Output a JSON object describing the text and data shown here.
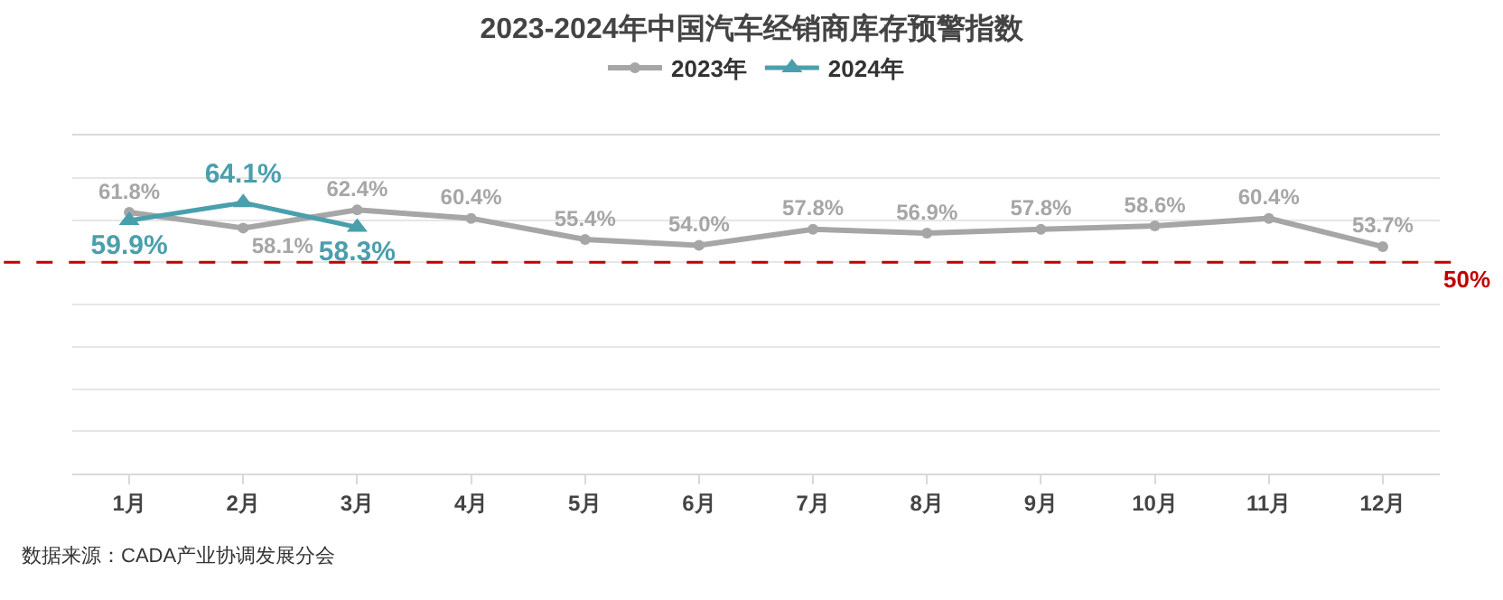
{
  "chart_data": {
    "type": "line",
    "title": "2023-2024年中国汽车经销商库存预警指数",
    "categories": [
      "1月",
      "2月",
      "3月",
      "4月",
      "5月",
      "6月",
      "7月",
      "8月",
      "9月",
      "10月",
      "11月",
      "12月"
    ],
    "series": [
      {
        "name": "2023年",
        "color": "#a6a6a6",
        "marker": "circle",
        "values": [
          61.8,
          58.1,
          62.4,
          60.4,
          55.4,
          54.0,
          57.8,
          56.9,
          57.8,
          58.6,
          60.4,
          53.7
        ],
        "value_labels": [
          "61.8%",
          "58.1%",
          "62.4%",
          "60.4%",
          "55.4%",
          "54.0%",
          "57.8%",
          "56.9%",
          "57.8%",
          "58.6%",
          "60.4%",
          "53.7%"
        ]
      },
      {
        "name": "2024年",
        "color": "#4a9fad",
        "marker": "triangle",
        "values": [
          59.9,
          64.1,
          58.3,
          null,
          null,
          null,
          null,
          null,
          null,
          null,
          null,
          null
        ],
        "value_labels": [
          "59.9%",
          "64.1%",
          "58.3%",
          null,
          null,
          null,
          null,
          null,
          null,
          null,
          null,
          null
        ]
      }
    ],
    "ylim": [
      0,
      80
    ],
    "yticks": [
      {
        "value": 0,
        "label": null
      },
      {
        "value": 10,
        "label": null
      },
      {
        "value": 20,
        "label": null
      },
      {
        "value": 30,
        "label": null
      },
      {
        "value": 40,
        "label": null
      },
      {
        "value": 50,
        "label": null
      },
      {
        "value": 60,
        "label": null
      },
      {
        "value": 70,
        "label": null
      }
    ],
    "tick_labels": "x",
    "grid": "y",
    "legend": "top",
    "line_style": "solid",
    "ref_lines": [
      {
        "axis": "y",
        "value": 50,
        "label": "50%",
        "color": "#c00000",
        "line_style": "dashed"
      }
    ],
    "annotations": [
      "数据来源：CADA产业协调发展分会"
    ]
  }
}
